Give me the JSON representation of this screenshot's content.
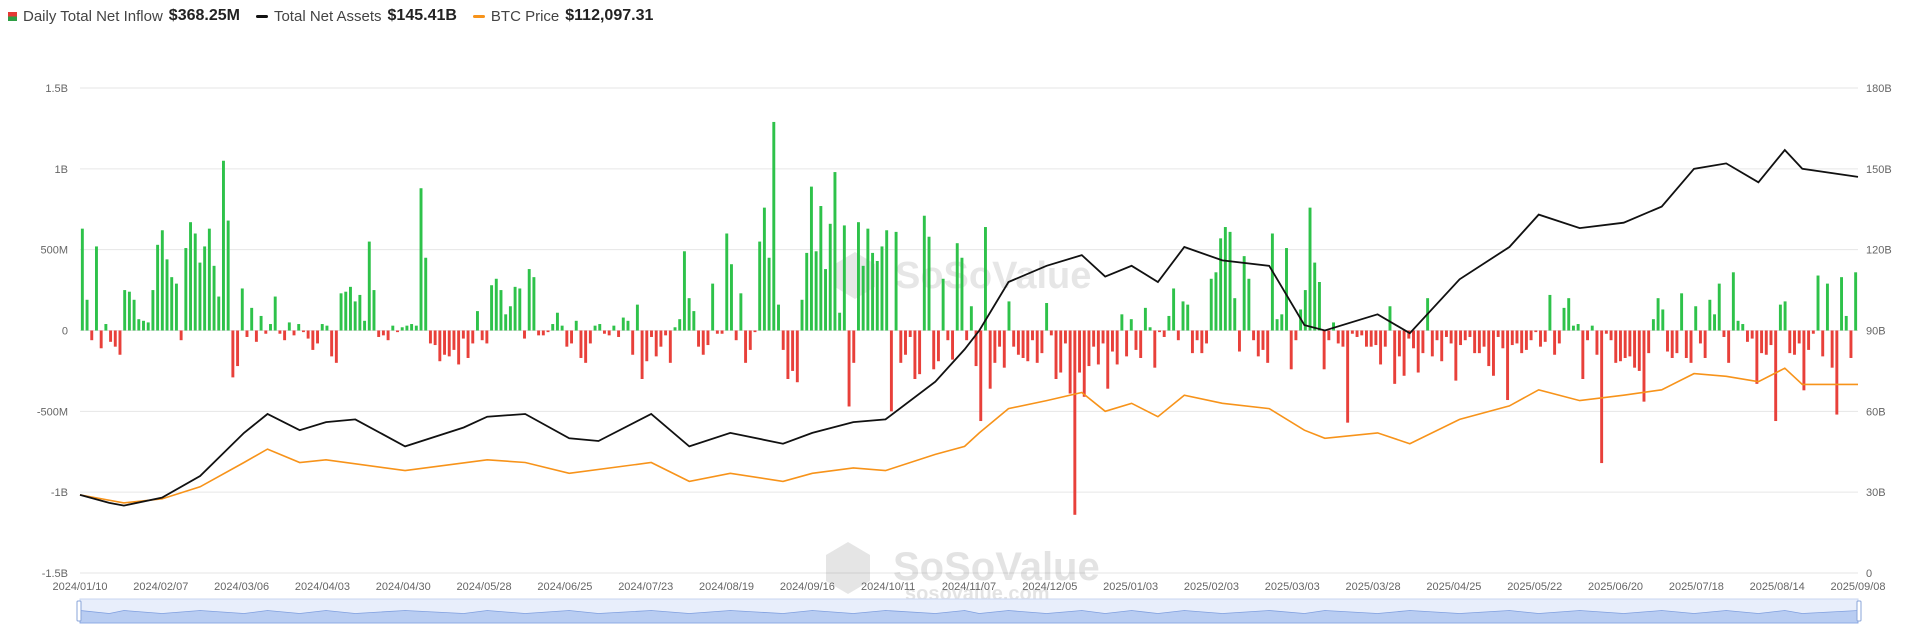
{
  "legend": {
    "inflow_label": "Daily Total Net Inflow",
    "inflow_value": "$368.25M",
    "assets_label": "Total Net Assets",
    "assets_value": "$145.41B",
    "btc_label": "BTC Price",
    "btc_value": "$112,097.31"
  },
  "watermark": {
    "brand": "SoSoValue",
    "url": "sosovalue.com"
  },
  "colors": {
    "positive": "#2ec24a",
    "negative": "#e8403a",
    "assets": "#111111",
    "btc": "#f7931a",
    "grid": "#e6e6e6",
    "navigator": "#b9cdf2"
  },
  "chart_data": {
    "type": "bar",
    "x_start": "2024-01-10",
    "x_end": "2025-09-08",
    "x_ticks": [
      "2024/01/10",
      "2024/02/07",
      "2024/03/06",
      "2024/04/03",
      "2024/04/30",
      "2024/05/28",
      "2024/06/25",
      "2024/07/23",
      "2024/08/19",
      "2024/09/16",
      "2024/10/11",
      "2024/11/07",
      "2024/12/05",
      "2025/01/03",
      "2025/02/03",
      "2025/03/03",
      "2025/03/28",
      "2025/04/25",
      "2025/05/22",
      "2025/06/20",
      "2025/07/18",
      "2025/08/14",
      "2025/09/08"
    ],
    "y_left_ticks": [
      "1.5B",
      "1B",
      "500M",
      "0",
      "-500M",
      "-1B",
      "-1.5B"
    ],
    "y_left_range": [
      -1500,
      1500
    ],
    "y_left_unit": "USD millions",
    "y_right_ticks": [
      "180B",
      "150B",
      "120B",
      "90B",
      "60B",
      "30B",
      "0"
    ],
    "y_right_range": [
      0,
      180
    ],
    "y_right_unit": "USD billions",
    "series": [
      {
        "name": "Daily Total Net Inflow",
        "type": "bar",
        "axis": "left",
        "values": [
          630,
          190,
          -60,
          520,
          -110,
          40,
          -70,
          -100,
          -150,
          250,
          240,
          190,
          70,
          60,
          50,
          250,
          530,
          620,
          440,
          330,
          290,
          -60,
          510,
          670,
          600,
          420,
          520,
          630,
          400,
          210,
          1050,
          680,
          -290,
          -220,
          260,
          -40,
          140,
          -70,
          90,
          -20,
          40,
          210,
          -20,
          -60,
          50,
          -30,
          40,
          -10,
          -50,
          -120,
          -80,
          40,
          30,
          -160,
          -200,
          230,
          240,
          270,
          180,
          220,
          60,
          550,
          250,
          -40,
          -30,
          -60,
          30,
          -10,
          20,
          30,
          40,
          30,
          880,
          450,
          -80,
          -90,
          -190,
          -150,
          -160,
          -120,
          -210,
          -50,
          -170,
          -80,
          120,
          -60,
          -80,
          280,
          320,
          250,
          100,
          150,
          270,
          260,
          -50,
          380,
          330,
          -30,
          -30,
          -10,
          40,
          110,
          30,
          -100,
          -80,
          60,
          -170,
          -200,
          -80,
          30,
          40,
          -20,
          -30,
          30,
          -40,
          80,
          60,
          -150,
          160,
          -300,
          -190,
          -40,
          -160,
          -100,
          -30,
          -200,
          20,
          70,
          490,
          200,
          120,
          -100,
          -150,
          -90,
          290,
          -20,
          -20,
          600,
          410,
          -60,
          230,
          -200,
          -120,
          -10,
          550,
          760,
          450,
          1290,
          160,
          -120,
          -300,
          -250,
          -320,
          190,
          480,
          890,
          490,
          770,
          380,
          660,
          980,
          110,
          650,
          -470,
          -200,
          670,
          400,
          630,
          480,
          430,
          520,
          620,
          -500,
          610,
          -200,
          -150,
          -40,
          -300,
          -270,
          710,
          580,
          -240,
          -190,
          320,
          -60,
          -180,
          540,
          450,
          -60,
          150,
          -220,
          -560,
          640,
          -360,
          -200,
          -100,
          -230,
          180,
          -100,
          -150,
          -170,
          -190,
          -60,
          -200,
          -140,
          170,
          -30,
          -300,
          -260,
          -80,
          -390,
          -1140,
          -260,
          -410,
          -220,
          -100,
          -210,
          -80,
          -360,
          -130,
          -210,
          100,
          -160,
          70,
          -120,
          -170,
          140,
          20,
          -230,
          -10,
          -40,
          90,
          260,
          -60,
          180,
          160,
          -140,
          -60,
          -140,
          -80,
          320,
          360,
          570,
          640,
          610,
          200,
          -130,
          460,
          320,
          -60,
          -160,
          -120,
          -200,
          600,
          70,
          100,
          510,
          -240,
          -60,
          130,
          250,
          760,
          420,
          300,
          -240,
          -60,
          50,
          -80,
          -100,
          -570,
          -20,
          -40,
          -30,
          -100,
          -100,
          -90,
          -210,
          -100,
          150,
          -330,
          -160,
          -280,
          -50,
          -110,
          -260,
          -140,
          200,
          -160,
          -60,
          -190,
          -40,
          -80,
          -310,
          -90,
          -60,
          -40,
          -140,
          -140,
          -100,
          -220,
          -280,
          -40,
          -110,
          -430,
          -90,
          -80,
          -140,
          -120,
          -60,
          -10,
          -100,
          -70,
          220,
          -150,
          -80,
          140,
          200,
          30,
          40,
          -300,
          -60,
          30,
          -150,
          -820,
          -20,
          -60,
          -200,
          -190,
          -170,
          -160,
          -230,
          -250,
          -440,
          -140,
          70,
          200,
          130,
          -130,
          -170,
          -140,
          230,
          -170,
          -200,
          150,
          -80,
          -170,
          190,
          100,
          290,
          -40,
          -200,
          360,
          60,
          40,
          -70,
          -50,
          -330,
          -140,
          -150,
          -90,
          -560,
          160,
          180,
          -140,
          -150,
          -80,
          -370,
          -120,
          -20,
          340,
          -160,
          290,
          -230,
          -520,
          330,
          90,
          -170,
          360
        ]
      },
      {
        "name": "Total Net Assets",
        "type": "line",
        "axis": "right",
        "points": [
          [
            "2024-01-10",
            29
          ],
          [
            "2024-01-20",
            26
          ],
          [
            "2024-01-25",
            25
          ],
          [
            "2024-02-07",
            28
          ],
          [
            "2024-02-20",
            36
          ],
          [
            "2024-03-06",
            52
          ],
          [
            "2024-03-14",
            59
          ],
          [
            "2024-03-25",
            53
          ],
          [
            "2024-04-03",
            56
          ],
          [
            "2024-04-13",
            57
          ],
          [
            "2024-04-30",
            47
          ],
          [
            "2024-05-20",
            54
          ],
          [
            "2024-05-28",
            58
          ],
          [
            "2024-06-10",
            59
          ],
          [
            "2024-06-25",
            50
          ],
          [
            "2024-07-05",
            49
          ],
          [
            "2024-07-23",
            59
          ],
          [
            "2024-08-05",
            47
          ],
          [
            "2024-08-19",
            52
          ],
          [
            "2024-09-06",
            48
          ],
          [
            "2024-09-16",
            52
          ],
          [
            "2024-09-30",
            56
          ],
          [
            "2024-10-11",
            57
          ],
          [
            "2024-10-28",
            71
          ],
          [
            "2024-11-07",
            83
          ],
          [
            "2024-11-12",
            90
          ],
          [
            "2024-11-22",
            108
          ],
          [
            "2024-12-05",
            114
          ],
          [
            "2024-12-17",
            118
          ],
          [
            "2024-12-25",
            110
          ],
          [
            "2025-01-03",
            114
          ],
          [
            "2025-01-12",
            108
          ],
          [
            "2025-01-21",
            121
          ],
          [
            "2025-02-03",
            116
          ],
          [
            "2025-02-19",
            114
          ],
          [
            "2025-03-03",
            92
          ],
          [
            "2025-03-10",
            90
          ],
          [
            "2025-03-28",
            96
          ],
          [
            "2025-04-08",
            89
          ],
          [
            "2025-04-25",
            109
          ],
          [
            "2025-05-12",
            121
          ],
          [
            "2025-05-22",
            133
          ],
          [
            "2025-06-05",
            128
          ],
          [
            "2025-06-20",
            130
          ],
          [
            "2025-07-03",
            136
          ],
          [
            "2025-07-14",
            150
          ],
          [
            "2025-07-25",
            152
          ],
          [
            "2025-08-05",
            145
          ],
          [
            "2025-08-14",
            157
          ],
          [
            "2025-08-20",
            150
          ],
          [
            "2025-09-08",
            147
          ]
        ]
      },
      {
        "name": "BTC Price",
        "type": "line",
        "axis": "right",
        "points": [
          [
            "2024-01-10",
            29
          ],
          [
            "2024-01-25",
            26
          ],
          [
            "2024-02-07",
            27.5
          ],
          [
            "2024-02-20",
            32
          ],
          [
            "2024-03-06",
            41
          ],
          [
            "2024-03-14",
            46
          ],
          [
            "2024-03-25",
            41
          ],
          [
            "2024-04-03",
            42
          ],
          [
            "2024-04-30",
            38
          ],
          [
            "2024-05-28",
            42
          ],
          [
            "2024-06-10",
            41
          ],
          [
            "2024-06-25",
            37
          ],
          [
            "2024-07-23",
            41
          ],
          [
            "2024-08-05",
            34
          ],
          [
            "2024-08-19",
            37
          ],
          [
            "2024-09-06",
            34
          ],
          [
            "2024-09-16",
            37
          ],
          [
            "2024-09-30",
            39
          ],
          [
            "2024-10-11",
            38
          ],
          [
            "2024-10-28",
            44
          ],
          [
            "2024-11-07",
            47
          ],
          [
            "2024-11-12",
            52
          ],
          [
            "2024-11-22",
            61
          ],
          [
            "2024-12-05",
            64
          ],
          [
            "2024-12-17",
            67
          ],
          [
            "2024-12-25",
            60
          ],
          [
            "2025-01-03",
            63
          ],
          [
            "2025-01-12",
            58
          ],
          [
            "2025-01-21",
            66
          ],
          [
            "2025-02-03",
            63
          ],
          [
            "2025-02-19",
            61
          ],
          [
            "2025-03-03",
            53
          ],
          [
            "2025-03-10",
            50
          ],
          [
            "2025-03-28",
            52
          ],
          [
            "2025-04-08",
            48
          ],
          [
            "2025-04-25",
            57
          ],
          [
            "2025-05-12",
            62
          ],
          [
            "2025-05-22",
            68
          ],
          [
            "2025-06-05",
            64
          ],
          [
            "2025-06-20",
            66
          ],
          [
            "2025-07-03",
            68
          ],
          [
            "2025-07-14",
            74
          ],
          [
            "2025-07-25",
            73
          ],
          [
            "2025-08-05",
            71
          ],
          [
            "2025-08-14",
            76
          ],
          [
            "2025-08-20",
            70
          ],
          [
            "2025-09-08",
            70
          ]
        ]
      }
    ],
    "grid": true,
    "legend_position": "top-left"
  }
}
